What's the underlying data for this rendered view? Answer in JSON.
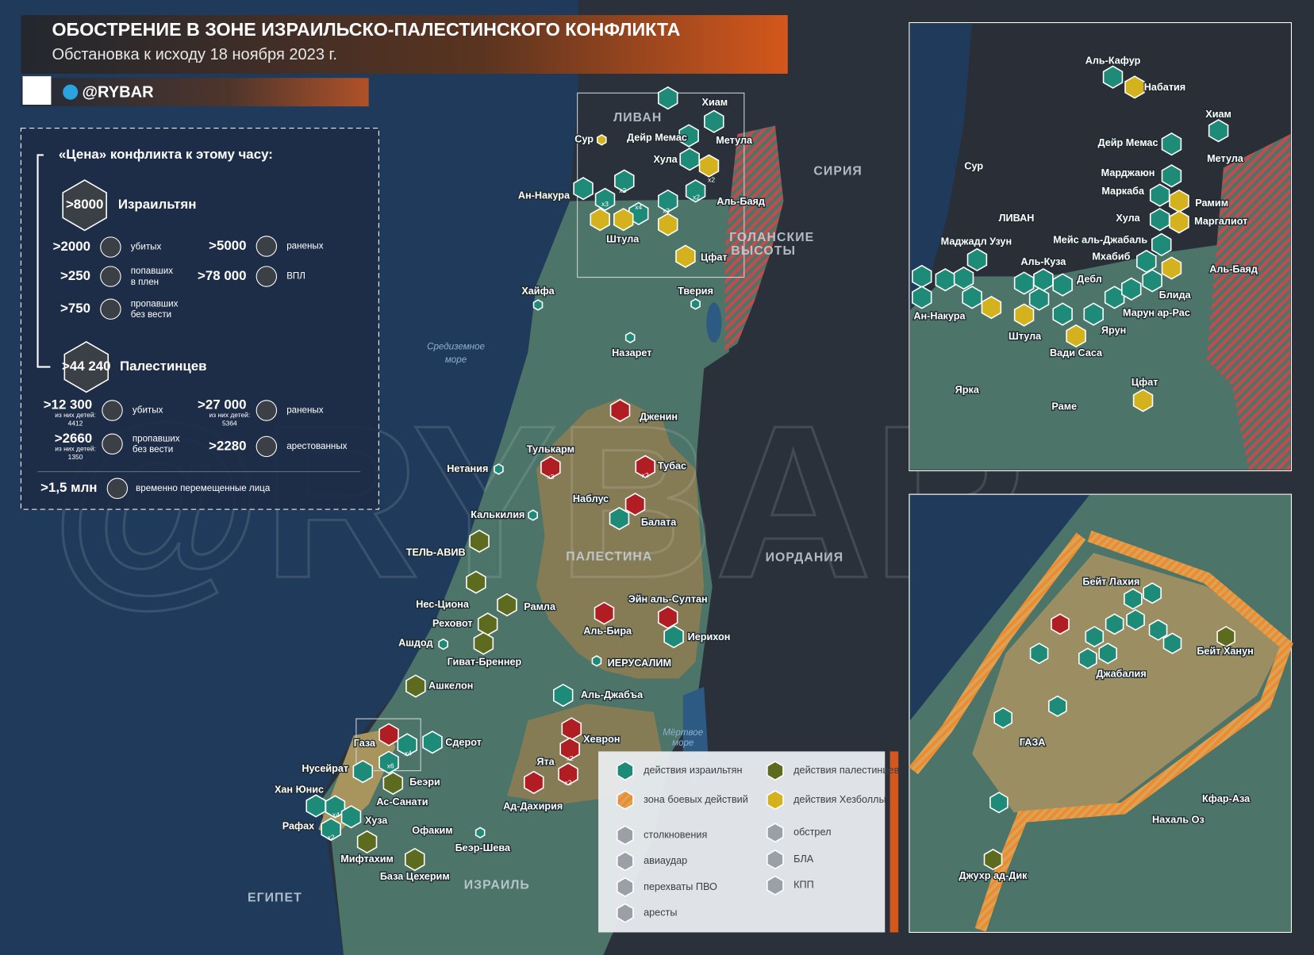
{
  "header": {
    "title": "ОБОСТРЕНИЕ В ЗОНЕ ИЗРАИЛЬСКО-ПАЛЕСТИНСКОГО КОНФЛИКТА",
    "subtitle": "Обстановка к исходу 18 ноября 2023 г.",
    "handle": "@RYBAR"
  },
  "stats": {
    "heading": "«Цена» конфликта к этому часу:",
    "israelis": {
      "total": ">8000",
      "label": "Израильтян",
      "items": [
        {
          "value": ">2000",
          "label": [
            "убитых"
          ]
        },
        {
          "value": ">250",
          "label": [
            "попавших",
            "в плен"
          ]
        },
        {
          "value": ">750",
          "label": [
            "пропавших",
            "без вести"
          ]
        },
        {
          "value": ">5000",
          "label": [
            "раненых"
          ]
        },
        {
          "value": ">78 000",
          "label": [
            "ВПЛ"
          ]
        }
      ]
    },
    "palestinians": {
      "total": ">44 240",
      "label": "Палестинцев",
      "items": [
        {
          "value": ">12 300",
          "note": "из них детей:",
          "children": "4412",
          "label": [
            "убитых"
          ]
        },
        {
          "value": ">2660",
          "note": "из них детей:",
          "children": "1350",
          "label": [
            "пропавших",
            "без вести"
          ]
        },
        {
          "value": ">27 000",
          "note": "из них детей:",
          "children": "5364",
          "label": [
            "раненых"
          ]
        },
        {
          "value": ">2280",
          "label": [
            "арестованных"
          ]
        }
      ]
    },
    "displaced": {
      "value": ">1,5 млн",
      "label": "временно перемещенные лица"
    }
  },
  "map": {
    "countries": [
      "ЛИВАН",
      "СИРИЯ",
      "ГОЛАНСКИЕ",
      "ВЫСОТЫ",
      "ИОРДАНИЯ",
      "ПАЛЕСТИНА",
      "ЕГИПЕТ",
      "ИЗРАИЛЬ"
    ],
    "seas": [
      "Средиземное",
      "море",
      "Мёртвое",
      "море"
    ],
    "places": [
      "Хиам",
      "Дейр Мемас",
      "Метула",
      "Сур",
      "Хула",
      "Ан-Накура",
      "Аль-Баяд",
      "Штула",
      "Цфат",
      "Хайфа",
      "Тверия",
      "Назарет",
      "Дженин",
      "Тулькарм",
      "Тубас",
      "Нетания",
      "Наблус",
      "Балата",
      "Калькилия",
      "ТЕЛЬ-АВИВ",
      "Нес-Циона",
      "Рамла",
      "Эйн аль-Султан",
      "Реховот",
      "Аль-Бира",
      "Иерихон",
      "Ашдод",
      "Гиват-Бреннер",
      "ИЕРУСАЛИМ",
      "Ашкелон",
      "Аль-Джабъа",
      "Газа",
      "Сдерот",
      "Хеврон",
      "Нусейрат",
      "Ята",
      "Беэри",
      "Хан Юнис",
      "Ас-Санати",
      "Ад-Дахирия",
      "Рафах",
      "Хуза",
      "Офаким",
      "Беэр-Шева",
      "Мифтахим",
      "База Цехерим"
    ],
    "badges": [
      "x2",
      "x3",
      "x2",
      "x4",
      "x3",
      "x2",
      "x3",
      "x2",
      "x2",
      "x2",
      "x6",
      "x4",
      "x4",
      "x2"
    ]
  },
  "inset_north": {
    "places": [
      "Аль-Кафур",
      "Набатия",
      "Хиам",
      "Дейр Мемас",
      "Метула",
      "Сур",
      "Марджаюн",
      "Маркаба",
      "Рамим",
      "ЛИВАН",
      "Хула",
      "Маргалиот",
      "Маджадл Узун",
      "Мейс аль-Джабаль",
      "Мхабиб",
      "Аль-Куза",
      "Аль-Баяд",
      "Дебл",
      "Блида",
      "Ан-Накура",
      "Марун ар-Рас",
      "Штула",
      "Ярун",
      "Вади Саса",
      "Цфат",
      "Ярка",
      "Раме"
    ]
  },
  "inset_gaza": {
    "places": [
      "Бейт Лахия",
      "Бейт Ханун",
      "Джабалия",
      "ГАЗА",
      "Кфар-Аза",
      "Нахаль Оз",
      "Джухр ад-Дик"
    ]
  },
  "legend": {
    "items": [
      "действия израильтян",
      "зона боевых действий",
      "столкновения",
      "авиаудар",
      "перехваты ПВО",
      "аресты",
      "действия палестинцев",
      "действия Хезболлы",
      "обстрел",
      "БЛА",
      "КПП"
    ]
  }
}
